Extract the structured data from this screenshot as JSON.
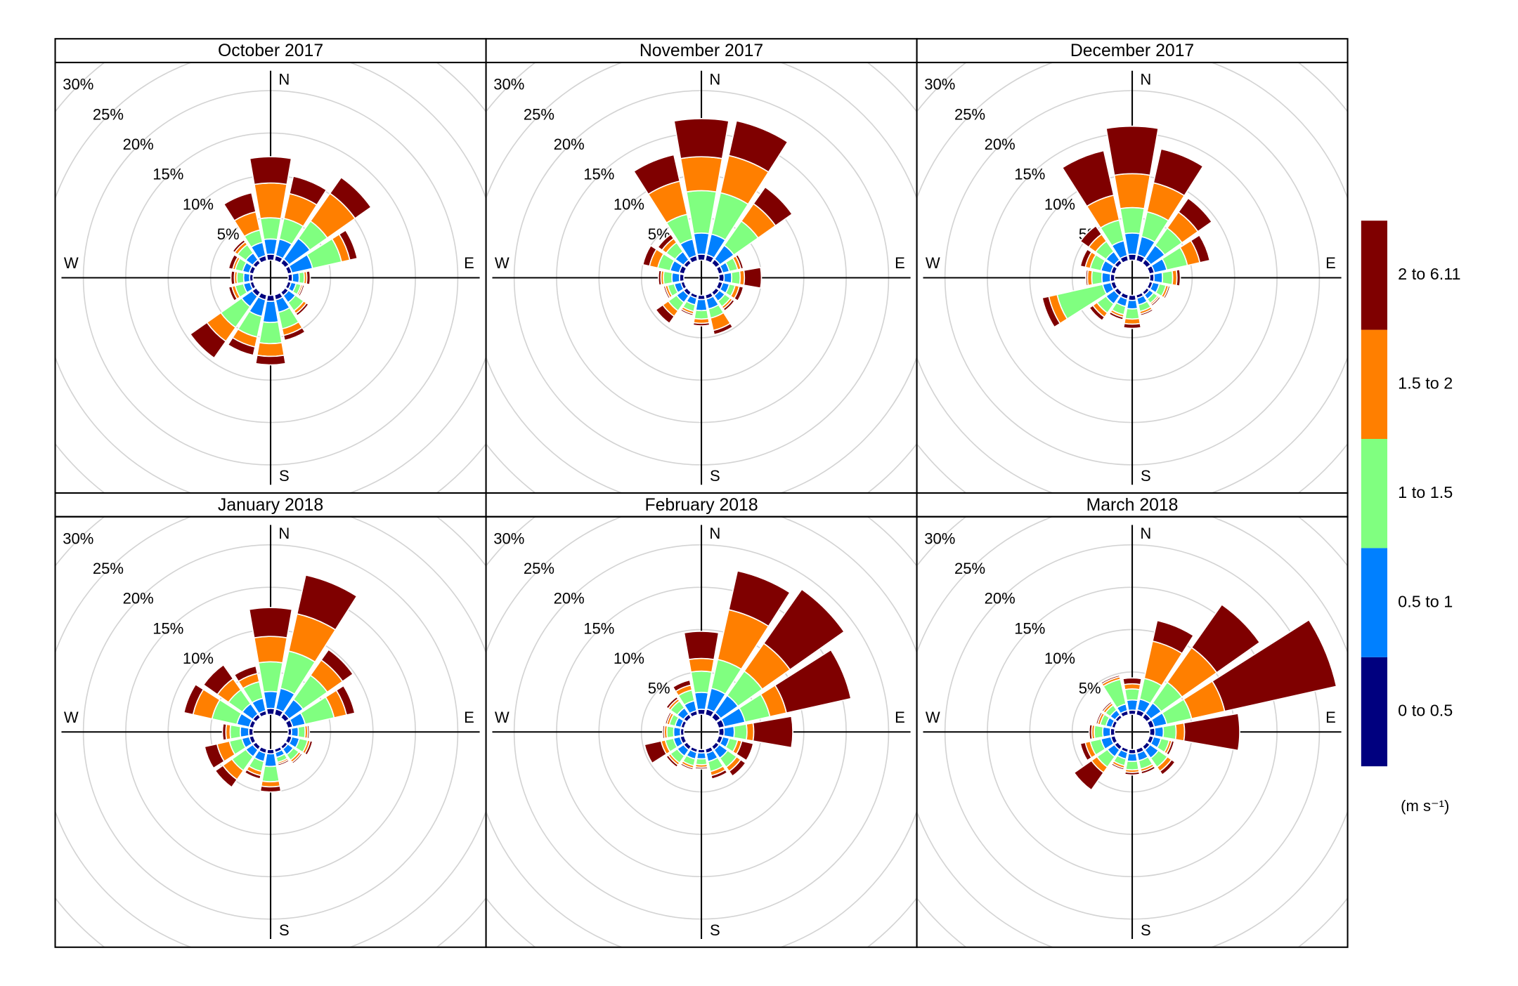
{
  "chart_data": {
    "type": "windrose",
    "directions": [
      0,
      22.5,
      45,
      67.5,
      90,
      112.5,
      135,
      157.5,
      180,
      202.5,
      225,
      247.5,
      270,
      292.5,
      315,
      337.5
    ],
    "compass": [
      "N",
      "E",
      "S",
      "W"
    ],
    "rlim": [
      0,
      30
    ],
    "rticks": [
      {
        "value": 5,
        "label": "5%"
      },
      {
        "value": 10,
        "label": "10%"
      },
      {
        "value": 15,
        "label": "15%"
      },
      {
        "value": 20,
        "label": "20%"
      },
      {
        "value": 25,
        "label": "25%"
      },
      {
        "value": 30,
        "label": "30%"
      }
    ],
    "legend_title": "(m s⁻¹)",
    "speed_bins": [
      {
        "name": "0 to 0.5",
        "color": "#00007f"
      },
      {
        "name": "0.5 to 1",
        "color": "#0080ff"
      },
      {
        "name": "1 to 1.5",
        "color": "#80ff80"
      },
      {
        "name": "1.5 to 2",
        "color": "#ff7f00"
      },
      {
        "name": "2 to 6.11",
        "color": "#7f0000"
      }
    ],
    "panels": [
      {
        "title": "October 2017",
        "values": [
          [
            0.7,
            1.8,
            2.5,
            4.1,
            3.1
          ],
          [
            0.6,
            2,
            2.5,
            3,
            2.1
          ],
          [
            0.6,
            3,
            2.5,
            4,
            2.3
          ],
          [
            0.5,
            2.5,
            3.5,
            1,
            0.9
          ],
          [
            0.5,
            0.8,
            0.6,
            0.3,
            0.4
          ],
          [
            0.4,
            0.6,
            0.6,
            0.2,
            0.2
          ],
          [
            0.5,
            1,
            1.2,
            0.4,
            0.3
          ],
          [
            0.6,
            1.5,
            2,
            0.8,
            0.6
          ],
          [
            0.7,
            2.5,
            2.5,
            1.5,
            1
          ],
          [
            0.6,
            2,
            2.5,
            1.2,
            1
          ],
          [
            0.6,
            1.5,
            3,
            2,
            2.4
          ],
          [
            0.4,
            0.8,
            1,
            0.4,
            0.4
          ],
          [
            0.4,
            0.7,
            0.8,
            0.3,
            0.4
          ],
          [
            0.5,
            0.8,
            0.9,
            0.3,
            0.5
          ],
          [
            0.5,
            1,
            1.2,
            0.4,
            0.3
          ],
          [
            0.6,
            1.6,
            1.5,
            2.2,
            2.3
          ]
        ]
      },
      {
        "title": "November 2017",
        "values": [
          [
            0.7,
            2.5,
            5,
            4,
            4.5
          ],
          [
            0.7,
            2.5,
            5,
            4.5,
            4.2
          ],
          [
            0.6,
            2,
            3.5,
            2.5,
            2.4
          ],
          [
            0.5,
            0.8,
            1,
            0.4,
            0.3
          ],
          [
            0.6,
            0.9,
            1,
            0.5,
            2
          ],
          [
            0.5,
            0.8,
            0.7,
            0.5,
            0.5
          ],
          [
            0.5,
            0.8,
            0.8,
            0.3,
            0.3
          ],
          [
            0.5,
            1.2,
            1.1,
            1.5,
            0.5
          ],
          [
            0.5,
            1.3,
            1,
            0.5,
            0.3
          ],
          [
            0.4,
            0.8,
            0.8,
            0.3,
            0.2
          ],
          [
            0.5,
            1,
            1.2,
            0.8,
            1
          ],
          [
            0.4,
            0.8,
            0.8,
            0.3,
            0.2
          ],
          [
            0.5,
            0.9,
            1,
            0.3,
            0.3
          ],
          [
            0.6,
            1.1,
            1.5,
            1,
            0.8
          ],
          [
            0.5,
            1.2,
            1.3,
            0.6,
            0.6
          ],
          [
            0.6,
            2,
            3,
            4,
            3.2
          ]
        ]
      },
      {
        "title": "December 2017",
        "values": [
          [
            0.7,
            2.5,
            3,
            4,
            5.6
          ],
          [
            0.7,
            2.2,
            3,
            3.5,
            4.1
          ],
          [
            0.6,
            2,
            2.5,
            2.3,
            2
          ],
          [
            0.6,
            1.5,
            2.5,
            1.5,
            1.2
          ],
          [
            0.5,
            1,
            1.2,
            0.5,
            0.4
          ],
          [
            0.4,
            0.8,
            0.8,
            0.3,
            0.2
          ],
          [
            0.4,
            0.6,
            0.6,
            0.2,
            0.2
          ],
          [
            0.4,
            0.8,
            0.8,
            0.3,
            0.2
          ],
          [
            0.6,
            1,
            1.2,
            0.6,
            0.5
          ],
          [
            0.5,
            0.9,
            1,
            0.3,
            0.3
          ],
          [
            0.5,
            1.2,
            1.3,
            0.6,
            0.5
          ],
          [
            0.5,
            1,
            5.5,
            1,
            0.8
          ],
          [
            0.5,
            1,
            1.2,
            0.5,
            0.2
          ],
          [
            0.5,
            1.2,
            1.3,
            0.6,
            0.6
          ],
          [
            0.5,
            1.2,
            1.5,
            1,
            1.2
          ],
          [
            0.6,
            1.8,
            2.5,
            3,
            5.4
          ]
        ]
      },
      {
        "title": "January 2018",
        "values": [
          [
            0.7,
            2,
            3.5,
            3,
            3.4
          ],
          [
            0.7,
            2.5,
            4.5,
            4.5,
            4.7
          ],
          [
            0.6,
            2,
            3.5,
            2.2,
            1.5
          ],
          [
            0.6,
            1.5,
            3.5,
            1.5,
            1
          ],
          [
            0.4,
            0.8,
            0.8,
            0.3,
            0.2
          ],
          [
            0.5,
            0.9,
            1,
            0.3,
            0.3
          ],
          [
            0.4,
            0.8,
            0.8,
            0.3,
            0.2
          ],
          [
            0.4,
            0.6,
            0.6,
            0.2,
            0.2
          ],
          [
            0.5,
            1.5,
            1.8,
            0.6,
            0.6
          ],
          [
            0.5,
            1,
            1.2,
            0.5,
            0.4
          ],
          [
            0.5,
            1,
            2,
            1.3,
            1.1
          ],
          [
            0.5,
            0.9,
            1.5,
            1.5,
            1.5
          ],
          [
            0.5,
            1,
            1.2,
            0.5,
            0.4
          ],
          [
            0.5,
            1.5,
            3,
            2.3,
            1.1
          ],
          [
            0.5,
            1.5,
            2,
            1.6,
            2
          ],
          [
            0.5,
            1.5,
            2,
            1,
            0.9
          ]
        ]
      },
      {
        "title": "February 2018",
        "values": [
          [
            0.6,
            2,
            2.5,
            1.5,
            3.2
          ],
          [
            0.7,
            2.5,
            3.5,
            6,
            4.7
          ],
          [
            0.7,
            2.5,
            3.5,
            4,
            7.8
          ],
          [
            0.7,
            2.5,
            3,
            2,
            7.8
          ],
          [
            0.6,
            1.2,
            1.5,
            0.8,
            4.6
          ],
          [
            0.5,
            0.8,
            1,
            0.5,
            1.4
          ],
          [
            0.5,
            1.2,
            1.3,
            0.6,
            0.7
          ],
          [
            0.5,
            1,
            1.2,
            0.5,
            0.4
          ],
          [
            0.4,
            0.7,
            0.7,
            0.3,
            0.2
          ],
          [
            0.4,
            0.8,
            0.8,
            0.3,
            0.2
          ],
          [
            0.5,
            0.9,
            1,
            0.3,
            0.3
          ],
          [
            0.5,
            0.8,
            1,
            0.5,
            2
          ],
          [
            0.4,
            0.8,
            0.8,
            0.3,
            0.2
          ],
          [
            0.4,
            0.7,
            0.7,
            0.3,
            0.2
          ],
          [
            0.5,
            0.9,
            1,
            0.3,
            0.3
          ],
          [
            0.5,
            1.2,
            1.3,
            0.6,
            0.6
          ]
        ]
      },
      {
        "title": "March 2018",
        "values": [
          [
            0.5,
            1.2,
            1.3,
            0.6,
            0.7
          ],
          [
            0.6,
            1.3,
            2.5,
            4.5,
            2.5
          ],
          [
            0.6,
            1.5,
            3,
            5,
            6.2
          ],
          [
            0.6,
            1.5,
            3,
            4,
            13.5
          ],
          [
            0.6,
            1,
            1.5,
            1,
            6.5
          ],
          [
            0.5,
            0.9,
            1,
            0.3,
            0.3
          ],
          [
            0.5,
            1.2,
            1.3,
            0.6,
            0.5
          ],
          [
            0.5,
            0.9,
            1,
            0.3,
            0.3
          ],
          [
            0.5,
            0.9,
            1,
            0.3,
            0.3
          ],
          [
            0.4,
            0.8,
            0.8,
            0.3,
            0.2
          ],
          [
            0.5,
            1,
            1.5,
            0.8,
            2.5
          ],
          [
            0.5,
            1.2,
            1.3,
            0.6,
            0.6
          ],
          [
            0.5,
            0.9,
            1,
            0.3,
            0.3
          ],
          [
            0.4,
            0.7,
            0.7,
            0.3,
            0.2
          ],
          [
            0.4,
            0.7,
            0.7,
            0.3,
            0.2
          ],
          [
            0.5,
            0.8,
            3,
            0.3,
            0.2
          ]
        ]
      }
    ]
  }
}
